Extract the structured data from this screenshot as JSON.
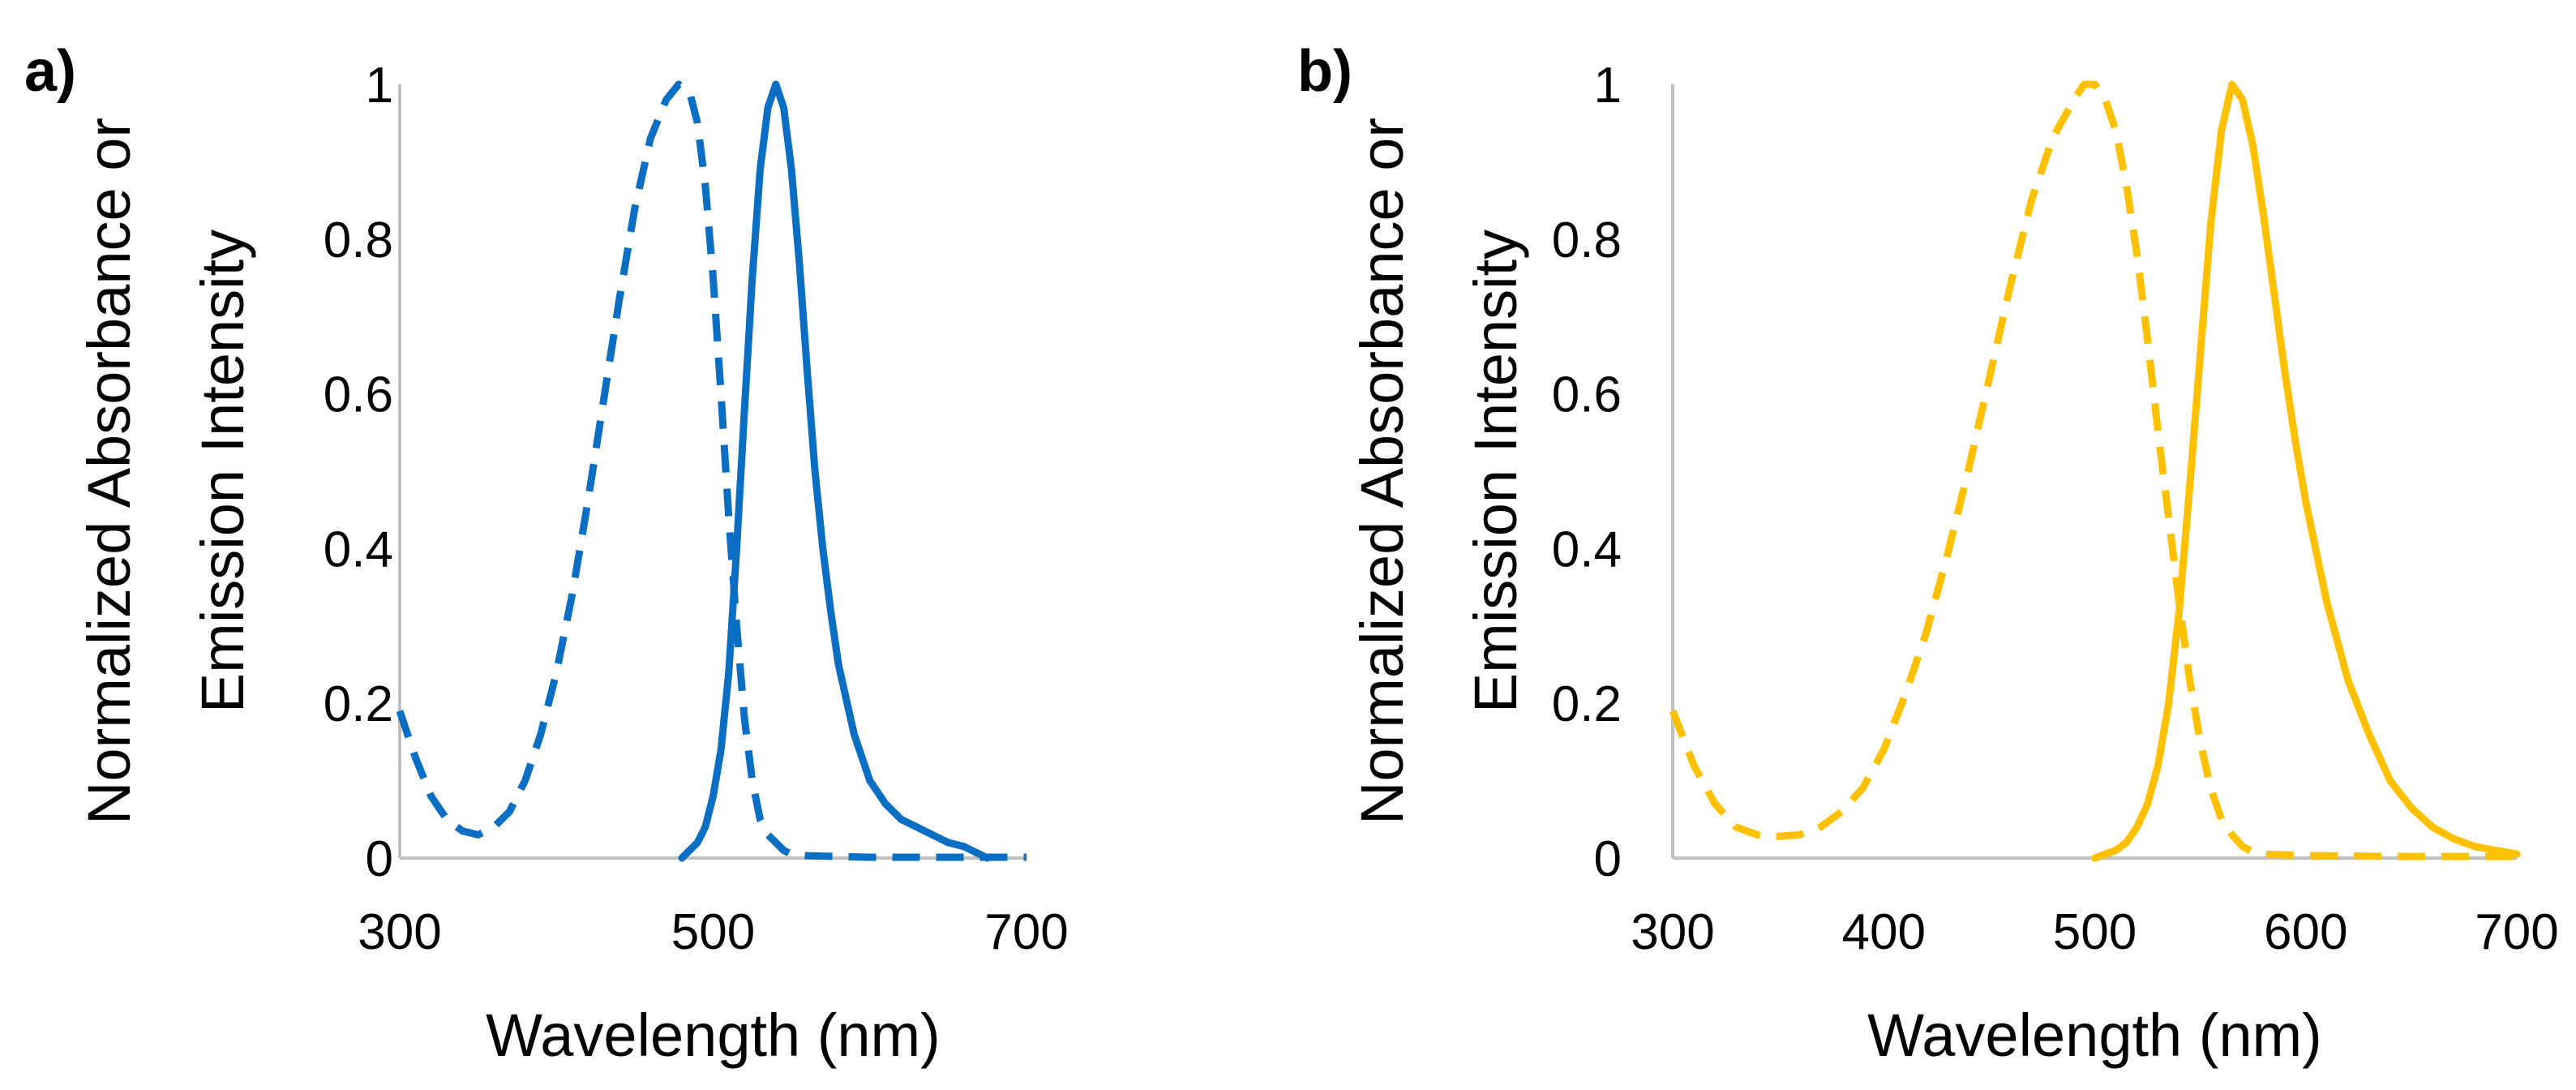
{
  "chart_data": [
    {
      "type": "line",
      "panel_label": "a)",
      "title": "",
      "xlabel": "Wavelength (nm)",
      "ylabel_lines": [
        "Normalized Absorbance or",
        "Emission Intensity"
      ],
      "xlim": [
        300,
        700
      ],
      "ylim": [
        0,
        1
      ],
      "xticks": [
        300,
        500,
        700
      ],
      "yticks": [
        0,
        0.2,
        0.4,
        0.6,
        0.8,
        1
      ],
      "ytick_labels": [
        "0",
        "0.2",
        "0.4",
        "0.6",
        "0.8",
        "1"
      ],
      "grid": false,
      "legend": "none",
      "series": [
        {
          "name": "Absorbance",
          "style": "dashed",
          "color": "#0A6EC2",
          "x": [
            300,
            310,
            320,
            330,
            340,
            350,
            360,
            370,
            380,
            390,
            400,
            410,
            420,
            430,
            440,
            450,
            460,
            470,
            478,
            485,
            490,
            495,
            500,
            505,
            510,
            515,
            520,
            525,
            530,
            535,
            540,
            545,
            550,
            560,
            580,
            600,
            650,
            700
          ],
          "y": [
            0.19,
            0.13,
            0.08,
            0.05,
            0.035,
            0.03,
            0.04,
            0.06,
            0.1,
            0.16,
            0.24,
            0.34,
            0.46,
            0.59,
            0.72,
            0.84,
            0.93,
            0.98,
            1.0,
            0.99,
            0.95,
            0.87,
            0.75,
            0.6,
            0.44,
            0.3,
            0.18,
            0.1,
            0.05,
            0.03,
            0.02,
            0.01,
            0.005,
            0.003,
            0.002,
            0.001,
            0.001,
            0.001
          ]
        },
        {
          "name": "Emission",
          "style": "solid",
          "color": "#0A6EC2",
          "x": [
            480,
            490,
            495,
            500,
            505,
            510,
            515,
            520,
            525,
            530,
            535,
            540,
            545,
            550,
            555,
            560,
            565,
            570,
            575,
            580,
            590,
            600,
            610,
            620,
            630,
            640,
            650,
            660,
            665,
            670,
            675
          ],
          "y": [
            0.0,
            0.02,
            0.04,
            0.08,
            0.14,
            0.24,
            0.4,
            0.58,
            0.75,
            0.89,
            0.97,
            1.0,
            0.97,
            0.89,
            0.77,
            0.63,
            0.5,
            0.4,
            0.32,
            0.25,
            0.16,
            0.1,
            0.07,
            0.05,
            0.04,
            0.03,
            0.02,
            0.015,
            0.01,
            0.005,
            0.0
          ]
        }
      ]
    },
    {
      "type": "line",
      "panel_label": "b)",
      "title": "",
      "xlabel": "Wavelength (nm)",
      "ylabel_lines": [
        "Normalized Absorbance or",
        "Emission Intensity"
      ],
      "xlim": [
        300,
        700
      ],
      "ylim": [
        0,
        1
      ],
      "xticks": [
        300,
        400,
        500,
        600,
        700
      ],
      "yticks": [
        0,
        0.2,
        0.4,
        0.6,
        0.8,
        1
      ],
      "ytick_labels": [
        "0",
        "0.2",
        "0.4",
        "0.6",
        "0.8",
        "1"
      ],
      "grid": false,
      "legend": "none",
      "series": [
        {
          "name": "Absorbance",
          "style": "dashed",
          "color": "#FFC000",
          "x": [
            300,
            310,
            320,
            330,
            340,
            350,
            360,
            370,
            380,
            390,
            400,
            410,
            420,
            430,
            440,
            450,
            460,
            470,
            480,
            490,
            495,
            500,
            505,
            510,
            515,
            520,
            525,
            530,
            535,
            540,
            545,
            550,
            555,
            560,
            565,
            570,
            575,
            580,
            600,
            650,
            700
          ],
          "y": [
            0.19,
            0.12,
            0.07,
            0.04,
            0.03,
            0.028,
            0.03,
            0.04,
            0.06,
            0.09,
            0.14,
            0.21,
            0.29,
            0.39,
            0.5,
            0.62,
            0.74,
            0.85,
            0.93,
            0.98,
            1.0,
            1.0,
            0.98,
            0.94,
            0.87,
            0.78,
            0.67,
            0.55,
            0.44,
            0.33,
            0.23,
            0.15,
            0.09,
            0.05,
            0.03,
            0.015,
            0.008,
            0.005,
            0.003,
            0.002,
            0.002
          ]
        },
        {
          "name": "Emission",
          "style": "solid",
          "color": "#FFC000",
          "x": [
            500,
            510,
            515,
            520,
            525,
            530,
            535,
            540,
            545,
            550,
            555,
            560,
            565,
            570,
            575,
            580,
            585,
            590,
            595,
            600,
            610,
            620,
            630,
            640,
            650,
            660,
            670,
            680,
            690,
            700
          ],
          "y": [
            0.0,
            0.01,
            0.02,
            0.04,
            0.07,
            0.12,
            0.2,
            0.32,
            0.48,
            0.65,
            0.82,
            0.94,
            1.0,
            0.98,
            0.92,
            0.83,
            0.73,
            0.63,
            0.54,
            0.46,
            0.33,
            0.23,
            0.16,
            0.1,
            0.065,
            0.04,
            0.025,
            0.015,
            0.01,
            0.005
          ]
        }
      ]
    }
  ]
}
